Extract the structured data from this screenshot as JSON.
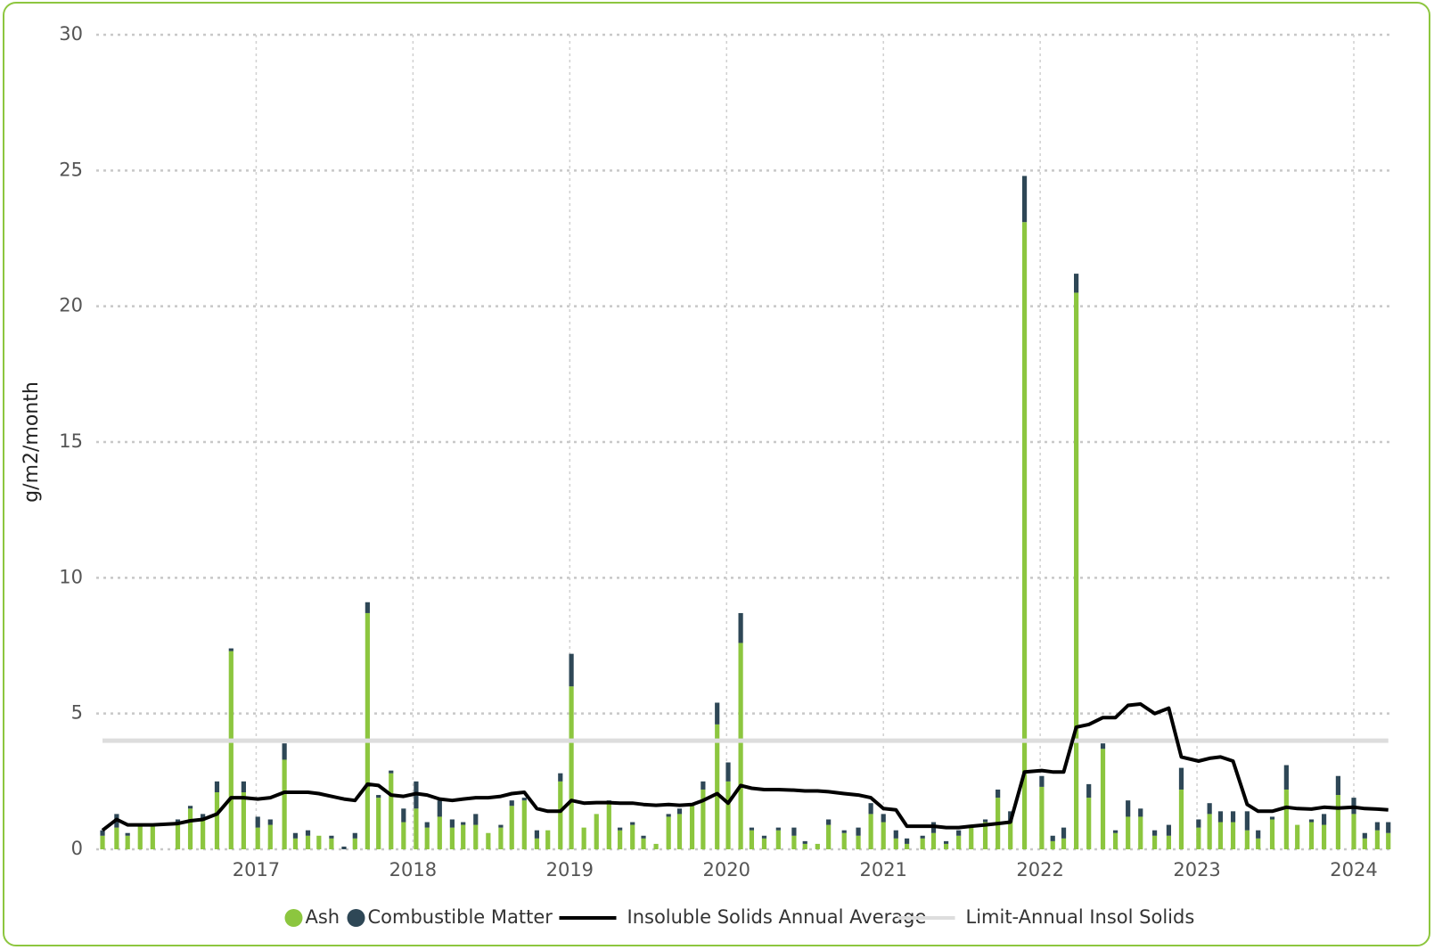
{
  "chart_data": {
    "type": "bar",
    "stacked": true,
    "ylabel": "g/m2/month",
    "ylim": [
      0,
      30
    ],
    "yticks": [
      0,
      5,
      10,
      15,
      20,
      25,
      30
    ],
    "xlim": [
      2015.98,
      2024.25
    ],
    "xticks": [
      2017,
      2018,
      2019,
      2020,
      2021,
      2022,
      2023,
      2024
    ],
    "grid": true,
    "legend": "bottom",
    "x": [
      2016.02,
      2016.11,
      2016.18,
      2016.26,
      2016.34,
      2016.5,
      2016.58,
      2016.66,
      2016.75,
      2016.84,
      2016.92,
      2017.01,
      2017.09,
      2017.18,
      2017.25,
      2017.33,
      2017.4,
      2017.48,
      2017.56,
      2017.63,
      2017.71,
      2017.78,
      2017.86,
      2017.94,
      2018.02,
      2018.09,
      2018.17,
      2018.25,
      2018.32,
      2018.4,
      2018.48,
      2018.56,
      2018.63,
      2018.71,
      2018.79,
      2018.86,
      2018.94,
      2019.01,
      2019.09,
      2019.17,
      2019.25,
      2019.32,
      2019.4,
      2019.47,
      2019.55,
      2019.63,
      2019.7,
      2019.78,
      2019.85,
      2019.94,
      2020.01,
      2020.09,
      2020.16,
      2020.24,
      2020.33,
      2020.43,
      2020.5,
      2020.58,
      2020.65,
      2020.75,
      2020.84,
      2020.92,
      2021.0,
      2021.08,
      2021.15,
      2021.25,
      2021.32,
      2021.4,
      2021.48,
      2021.56,
      2021.65,
      2021.73,
      2021.81,
      2021.9,
      2022.01,
      2022.08,
      2022.15,
      2022.23,
      2022.31,
      2022.4,
      2022.48,
      2022.56,
      2022.64,
      2022.73,
      2022.82,
      2022.9,
      2023.01,
      2023.08,
      2023.15,
      2023.23,
      2023.32,
      2023.39,
      2023.48,
      2023.57,
      2023.64,
      2023.73,
      2023.81,
      2023.9,
      2024.0,
      2024.07,
      2024.15,
      2024.22
    ],
    "series": [
      {
        "name": "Ash",
        "color": "#8cc63f",
        "values": [
          0.5,
          0.8,
          0.5,
          0.9,
          0.9,
          1.0,
          1.5,
          1.1,
          2.1,
          7.3,
          2.1,
          0.8,
          0.9,
          3.3,
          0.4,
          0.5,
          0.5,
          0.4,
          0.0,
          0.4,
          8.7,
          1.9,
          2.8,
          1.0,
          1.5,
          0.8,
          1.2,
          0.8,
          0.9,
          0.9,
          0.6,
          0.8,
          1.6,
          1.8,
          0.4,
          0.7,
          2.5,
          6.0,
          0.8,
          1.3,
          1.7,
          0.7,
          0.9,
          0.4,
          0.2,
          1.2,
          1.3,
          1.6,
          2.2,
          4.6,
          2.5,
          7.6,
          0.7,
          0.4,
          0.7,
          0.5,
          0.2,
          0.2,
          0.9,
          0.6,
          0.5,
          1.3,
          1.0,
          0.4,
          0.2,
          0.4,
          0.6,
          0.2,
          0.5,
          0.8,
          1.0,
          1.9,
          1.0,
          23.1,
          2.3,
          0.3,
          0.4,
          20.5,
          1.9,
          3.7,
          0.6,
          1.2,
          1.2,
          0.5,
          0.5,
          2.2,
          0.8,
          1.3,
          1.0,
          1.0,
          0.7,
          0.4,
          1.1,
          2.2,
          0.9,
          1.0,
          0.9,
          2.0,
          1.3,
          0.4,
          0.7,
          0.6
        ]
      },
      {
        "name": "Combustible Matter",
        "color": "#2e4756",
        "values": [
          0.2,
          0.5,
          0.1,
          0,
          0,
          0.1,
          0.1,
          0.2,
          0.4,
          0.1,
          0.4,
          0.4,
          0.2,
          0.6,
          0.2,
          0.2,
          0,
          0.1,
          0.1,
          0.2,
          0.4,
          0.1,
          0.1,
          0.5,
          1.0,
          0.2,
          0.6,
          0.3,
          0.1,
          0.4,
          0,
          0.1,
          0.2,
          0.1,
          0.3,
          0,
          0.3,
          1.2,
          0,
          0,
          0.1,
          0.1,
          0.1,
          0.1,
          0,
          0.1,
          0.2,
          0.1,
          0.3,
          0.8,
          0.7,
          1.1,
          0.1,
          0.1,
          0.1,
          0.3,
          0.1,
          0,
          0.2,
          0.1,
          0.3,
          0.4,
          0.3,
          0.3,
          0.2,
          0.1,
          0.4,
          0.1,
          0.2,
          0.1,
          0.1,
          0.3,
          0.4,
          1.7,
          0.4,
          0.2,
          0.4,
          0.7,
          0.5,
          0.2,
          0.1,
          0.6,
          0.3,
          0.2,
          0.4,
          0.8,
          0.3,
          0.4,
          0.4,
          0.4,
          0.7,
          0.3,
          0.1,
          0.9,
          0,
          0.1,
          0.4,
          0.7,
          0.6,
          0.2,
          0.3,
          0.4
        ]
      },
      {
        "name": "Insoluble Solids Annual Average",
        "type": "line",
        "color": "#000000",
        "values": [
          0.7,
          1.1,
          0.9,
          0.9,
          0.9,
          0.95,
          1.05,
          1.1,
          1.3,
          1.9,
          1.9,
          1.85,
          1.9,
          2.1,
          2.1,
          2.1,
          2.05,
          1.95,
          1.85,
          1.8,
          2.4,
          2.35,
          2.0,
          1.95,
          2.05,
          2.0,
          1.85,
          1.8,
          1.85,
          1.9,
          1.9,
          1.95,
          2.05,
          2.1,
          1.5,
          1.4,
          1.4,
          1.8,
          1.7,
          1.72,
          1.72,
          1.7,
          1.7,
          1.65,
          1.62,
          1.65,
          1.62,
          1.65,
          1.8,
          2.05,
          1.7,
          2.35,
          2.25,
          2.2,
          2.2,
          2.18,
          2.15,
          2.15,
          2.12,
          2.05,
          2.0,
          1.9,
          1.5,
          1.45,
          0.85,
          0.85,
          0.85,
          0.8,
          0.8,
          0.85,
          0.9,
          0.95,
          1.0,
          2.85,
          2.9,
          2.85,
          2.85,
          4.5,
          4.6,
          4.85,
          4.85,
          5.3,
          5.35,
          5.0,
          5.2,
          3.4,
          3.25,
          3.35,
          3.4,
          3.25,
          1.65,
          1.4,
          1.4,
          1.55,
          1.5,
          1.48,
          1.55,
          1.52,
          1.55,
          1.5,
          1.48,
          1.45
        ]
      },
      {
        "name": "Limit-Annual Insol Solids",
        "type": "hline",
        "color": "#dddddd",
        "value": 4
      }
    ]
  }
}
